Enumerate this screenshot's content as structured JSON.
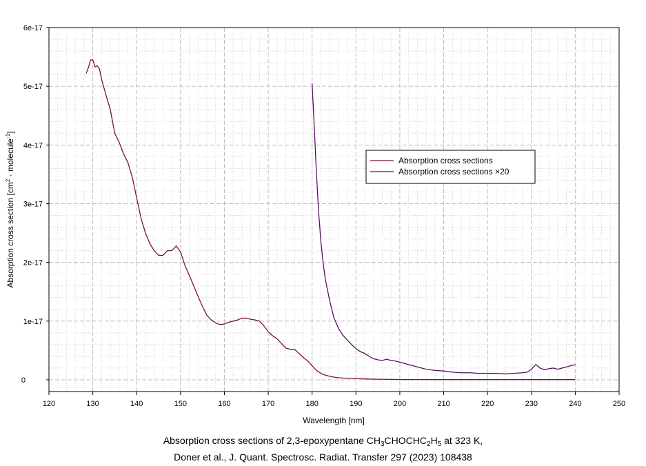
{
  "chart_data": {
    "type": "line",
    "xlabel": "Wavelength [nm]",
    "ylabel": "Absorption cross section [cm² · molecule⁻¹]",
    "ylabel_parts": {
      "pre": "Absorption cross section [cm",
      "sup1": "2",
      "mid": " · molecule",
      "sup2": "-1",
      "post": "]"
    },
    "xlim": [
      120,
      250
    ],
    "ylim": [
      -2e-18,
      6e-17
    ],
    "x_ticks": [
      120,
      130,
      140,
      150,
      160,
      170,
      180,
      190,
      200,
      210,
      220,
      230,
      240,
      250
    ],
    "x_tick_labels": [
      "120",
      "130",
      "140",
      "150",
      "160",
      "170",
      "180",
      "190",
      "200",
      "210",
      "220",
      "230",
      "240",
      "250"
    ],
    "y_ticks": [
      0,
      1e-17,
      2e-17,
      3e-17,
      4e-17,
      5e-17,
      6e-17
    ],
    "y_tick_labels": [
      "0",
      "1e-17",
      "2e-17",
      "3e-17",
      "4e-17",
      "5e-17",
      "6e-17"
    ],
    "grid": true,
    "legend_position": "right-center",
    "series": [
      {
        "name": "Absorption cross sections",
        "color": "#7a1040",
        "x": [
          128.5,
          129,
          129.5,
          130,
          130.5,
          131,
          131.5,
          132,
          133,
          134,
          135,
          136,
          137,
          138,
          139,
          140,
          141,
          142,
          143,
          144,
          145,
          146,
          147,
          148,
          149,
          150,
          151,
          152,
          153,
          154,
          155,
          156,
          157,
          158,
          159,
          160,
          161,
          162,
          163,
          164,
          165,
          166,
          167,
          168,
          169,
          170,
          171,
          172,
          173,
          174,
          175,
          176,
          177,
          178,
          179,
          180,
          181,
          182,
          183,
          184,
          185,
          186,
          187,
          188,
          190,
          192,
          195,
          200,
          205,
          210,
          215,
          220,
          225,
          230,
          235,
          240
        ],
        "y": [
          5.22e-17,
          5.32e-17,
          5.45e-17,
          5.45e-17,
          5.33e-17,
          5.35e-17,
          5.3e-17,
          5.12e-17,
          4.85e-17,
          4.6e-17,
          4.2e-17,
          4.05e-17,
          3.85e-17,
          3.7e-17,
          3.45e-17,
          3.1e-17,
          2.75e-17,
          2.5e-17,
          2.32e-17,
          2.2e-17,
          2.12e-17,
          2.12e-17,
          2.2e-17,
          2.2e-17,
          2.28e-17,
          2.18e-17,
          1.95e-17,
          1.78e-17,
          1.6e-17,
          1.42e-17,
          1.25e-17,
          1.1e-17,
          1.02e-17,
          9.7e-18,
          9.4e-18,
          9.5e-18,
          9.8e-18,
          1e-17,
          1.02e-17,
          1.05e-17,
          1.05e-17,
          1.03e-17,
          1.02e-17,
          1e-17,
          9.2e-18,
          8.2e-18,
          7.5e-18,
          7e-18,
          6.2e-18,
          5.4e-18,
          5.2e-18,
          5.2e-18,
          4.5e-18,
          3.8e-18,
          3.2e-18,
          2.4e-18,
          1.6e-18,
          1.1e-18,
          8e-19,
          6e-19,
          4.5e-19,
          3.5e-19,
          3e-19,
          2.5e-19,
          2e-19,
          1.5e-19,
          1e-19,
          5e-20,
          4e-20,
          3e-20,
          3e-20,
          3e-20,
          3e-20,
          3e-20,
          3e-20,
          3e-20
        ]
      },
      {
        "name": "Absorption cross sections ×20",
        "color": "#5a1060",
        "x": [
          180,
          180.5,
          181,
          181.5,
          182,
          182.5,
          183,
          184,
          185,
          186,
          187,
          188,
          189,
          190,
          191,
          192,
          193,
          194,
          195,
          196,
          197,
          198,
          199,
          200,
          202,
          204,
          206,
          208,
          210,
          212,
          214,
          216,
          218,
          220,
          222,
          224,
          226,
          228,
          229,
          230,
          231,
          232,
          233,
          234,
          235,
          236,
          237,
          238,
          239,
          240
        ],
        "y": [
          5.05e-17,
          4.3e-17,
          3.5e-17,
          2.85e-17,
          2.35e-17,
          2e-17,
          1.72e-17,
          1.35e-17,
          1.05e-17,
          8.8e-18,
          7.6e-18,
          6.8e-18,
          6e-18,
          5.3e-18,
          4.8e-18,
          4.5e-18,
          4e-18,
          3.6e-18,
          3.4e-18,
          3.3e-18,
          3.5e-18,
          3.3e-18,
          3.2e-18,
          3e-18,
          2.6e-18,
          2.2e-18,
          1.8e-18,
          1.6e-18,
          1.5e-18,
          1.3e-18,
          1.2e-18,
          1.2e-18,
          1.1e-18,
          1.1e-18,
          1.1e-18,
          1e-18,
          1.1e-18,
          1.2e-18,
          1.3e-18,
          1.8e-18,
          2.6e-18,
          2e-18,
          1.7e-18,
          1.9e-18,
          2e-18,
          1.8e-18,
          2e-18,
          2.2e-18,
          2.4e-18,
          2.6e-18
        ]
      }
    ]
  },
  "caption": {
    "line1_pre": "Absorption cross sections of 2,3-epoxypentane CH",
    "sub1": "3",
    "line1_mid": "CHOCHC",
    "sub2": "2",
    "line1_h": "H",
    "sub3": "5",
    "line1_post": " at 323 K,",
    "line2": "Doner et al., J. Quant. Spectrosc. Radiat. Transfer 297 (2023) 108438"
  }
}
